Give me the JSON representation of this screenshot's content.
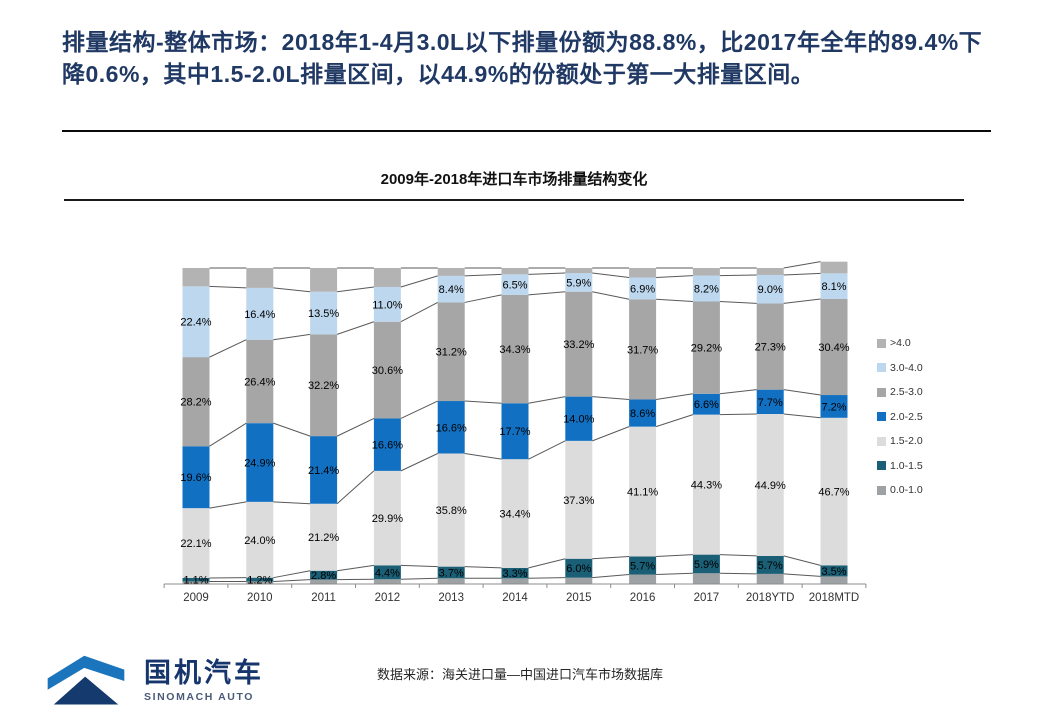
{
  "header": {
    "headline": "排量结构-整体市场：2018年1-4月3.0L以下排量份额为88.8%，比2017年全年的89.4%下降0.6%，其中1.5-2.0L排量区间，以44.9%的份额处于第一大排量区间。"
  },
  "chart_data": {
    "type": "bar",
    "variant": "stacked-100-percent-columns-with-connector-lines",
    "title": "2009年-2018年进口车市场排量结构变化",
    "categories": [
      "2009",
      "2010",
      "2011",
      "2012",
      "2013",
      "2014",
      "2015",
      "2016",
      "2017",
      "2018YTD",
      "2018MTD"
    ],
    "ylim": [
      0,
      100
    ],
    "grid": false,
    "legend_position": "right",
    "label_format": "one-decimal-percent",
    "series": [
      {
        "name": "0.0-1.0",
        "color": "#9EA2A4",
        "labeled": false,
        "estimated": true,
        "values": [
          0.8,
          0.8,
          1.4,
          1.5,
          1.8,
          1.8,
          2.0,
          3.0,
          3.4,
          3.2,
          2.4
        ]
      },
      {
        "name": "1.0-1.5",
        "color": "#1A5F75",
        "labeled": true,
        "values": [
          1.1,
          1.2,
          2.8,
          4.4,
          3.7,
          3.3,
          6.0,
          5.7,
          5.9,
          5.7,
          3.5
        ]
      },
      {
        "name": "1.5-2.0",
        "color": "#DCDCDC",
        "labeled": true,
        "values": [
          22.1,
          24.0,
          21.2,
          29.9,
          35.8,
          34.4,
          37.3,
          41.1,
          44.3,
          44.9,
          46.7
        ]
      },
      {
        "name": "2.0-2.5",
        "color": "#1170C2",
        "labeled": true,
        "values": [
          19.6,
          24.9,
          21.4,
          16.6,
          16.6,
          17.7,
          14.0,
          8.6,
          6.6,
          7.7,
          7.2
        ]
      },
      {
        "name": "2.5-3.0",
        "color": "#A6A6A6",
        "labeled": true,
        "values": [
          28.2,
          26.4,
          32.2,
          30.6,
          31.2,
          34.3,
          33.2,
          31.7,
          29.2,
          27.3,
          30.4
        ]
      },
      {
        "name": "3.0-4.0",
        "color": "#BDD7EE",
        "labeled": true,
        "values": [
          22.4,
          16.4,
          13.5,
          11.0,
          8.4,
          6.5,
          5.9,
          6.9,
          8.2,
          9.0,
          8.1
        ]
      },
      {
        "name": ">4.0",
        "color": "#B3B3B3",
        "labeled": false,
        "estimated": true,
        "values": [
          5.8,
          6.3,
          7.5,
          6.0,
          2.5,
          2.0,
          1.6,
          3.0,
          2.4,
          2.2,
          3.7
        ]
      }
    ],
    "legend_order_top_to_bottom": [
      ">4.0",
      "3.0-4.0",
      "2.5-3.0",
      "2.0-2.5",
      "1.5-2.0",
      "1.0-1.5",
      "0.0-1.0"
    ]
  },
  "footer": {
    "source_note": "数据来源：海关进口量—中国进口汽车市场数据库"
  },
  "logo": {
    "cn": "国机汽车",
    "en": "SINOMACH AUTO"
  },
  "colors": {
    "headline_navy": "#1F3864",
    "logo_blue": "#1B75BC",
    "logo_navy": "#143A6E",
    "connector_line": "#595959",
    "axis_line": "#8C8C8C"
  }
}
